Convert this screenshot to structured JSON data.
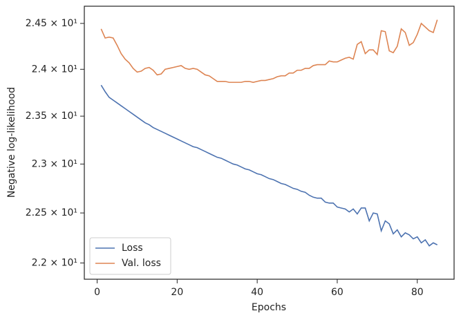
{
  "chart_data": {
    "type": "line",
    "x_label": "Epochs",
    "y_label": "Negative log-likelihood",
    "x": [
      1,
      2,
      3,
      4,
      5,
      6,
      7,
      8,
      9,
      10,
      11,
      12,
      13,
      14,
      15,
      16,
      17,
      18,
      19,
      20,
      21,
      22,
      23,
      24,
      25,
      26,
      27,
      28,
      29,
      30,
      31,
      32,
      33,
      34,
      35,
      36,
      37,
      38,
      39,
      40,
      41,
      42,
      43,
      44,
      45,
      46,
      47,
      48,
      49,
      50,
      51,
      52,
      53,
      54,
      55,
      56,
      57,
      58,
      59,
      60,
      61,
      62,
      63,
      64,
      65,
      66,
      67,
      68,
      69,
      70,
      71,
      72,
      73,
      74,
      75,
      76,
      77,
      78,
      79,
      80,
      81,
      82,
      83,
      84,
      85
    ],
    "series": [
      {
        "name": "Loss",
        "color": "#4c72b0",
        "values": [
          23.83,
          23.76,
          23.7,
          23.67,
          23.64,
          23.61,
          23.58,
          23.55,
          23.52,
          23.49,
          23.46,
          23.43,
          23.41,
          23.38,
          23.36,
          23.34,
          23.32,
          23.3,
          23.28,
          23.26,
          23.24,
          23.22,
          23.2,
          23.18,
          23.17,
          23.15,
          23.13,
          23.11,
          23.09,
          23.07,
          23.06,
          23.04,
          23.02,
          23.0,
          22.99,
          22.97,
          22.95,
          22.94,
          22.92,
          22.9,
          22.89,
          22.87,
          22.85,
          22.84,
          22.82,
          22.8,
          22.79,
          22.77,
          22.75,
          22.74,
          22.72,
          22.71,
          22.68,
          22.66,
          22.65,
          22.65,
          22.61,
          22.6,
          22.6,
          22.56,
          22.55,
          22.54,
          22.51,
          22.54,
          22.49,
          22.55,
          22.55,
          22.42,
          22.5,
          22.49,
          22.32,
          22.42,
          22.39,
          22.29,
          22.33,
          22.26,
          22.3,
          22.28,
          22.24,
          22.26,
          22.2,
          22.23,
          22.17,
          22.2,
          22.18
        ]
      },
      {
        "name": "Val. loss",
        "color": "#dd8452",
        "values": [
          24.44,
          24.34,
          24.35,
          24.34,
          24.26,
          24.17,
          24.11,
          24.07,
          24.01,
          23.97,
          23.98,
          24.01,
          24.02,
          23.99,
          23.94,
          23.95,
          24.0,
          24.01,
          24.02,
          24.03,
          24.04,
          24.01,
          24.0,
          24.01,
          24.0,
          23.97,
          23.94,
          23.93,
          23.9,
          23.87,
          23.87,
          23.87,
          23.86,
          23.86,
          23.86,
          23.86,
          23.87,
          23.87,
          23.86,
          23.87,
          23.88,
          23.88,
          23.89,
          23.9,
          23.92,
          23.93,
          23.93,
          23.96,
          23.96,
          23.99,
          23.99,
          24.01,
          24.01,
          24.04,
          24.05,
          24.05,
          24.05,
          24.09,
          24.08,
          24.08,
          24.1,
          24.12,
          24.13,
          24.11,
          24.27,
          24.3,
          24.17,
          24.21,
          24.21,
          24.16,
          24.42,
          24.41,
          24.2,
          24.18,
          24.25,
          24.44,
          24.4,
          24.26,
          24.29,
          24.38,
          24.5,
          24.46,
          24.42,
          24.4,
          24.54
        ]
      }
    ],
    "xlim": [
      -3.2,
      89.2
    ],
    "xticks": [
      0,
      20,
      40,
      60,
      80
    ],
    "ylim": [
      21.84,
      24.69
    ],
    "y_scale": "log",
    "yticks": [
      {
        "value": 22,
        "label": "2.2 × 10¹"
      },
      {
        "value": 22.5,
        "label": "2.25 × 10¹"
      },
      {
        "value": 23,
        "label": "2.3 × 10¹"
      },
      {
        "value": 23.5,
        "label": "2.35 × 10¹"
      },
      {
        "value": 24,
        "label": "2.4 × 10¹"
      },
      {
        "value": 24.5,
        "label": "2.45 × 10¹"
      }
    ],
    "grid": false,
    "legend": "lower left"
  }
}
